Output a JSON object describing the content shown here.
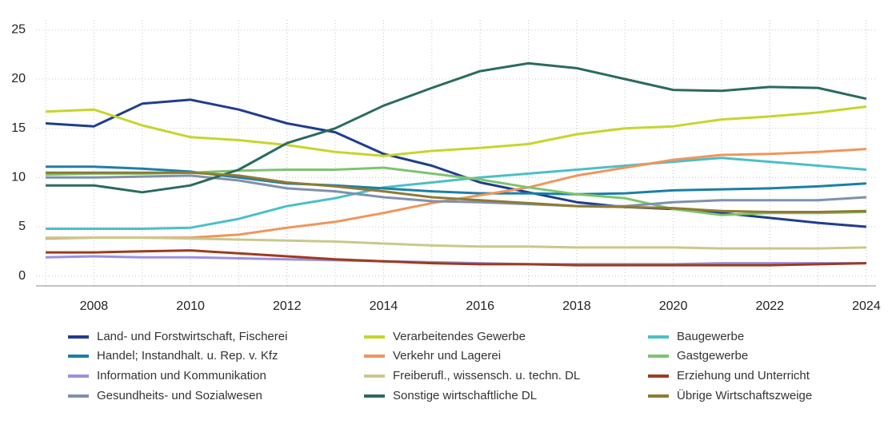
{
  "chart_data": {
    "type": "line",
    "x": [
      2007,
      2008,
      2009,
      2010,
      2011,
      2012,
      2013,
      2014,
      2015,
      2016,
      2017,
      2018,
      2019,
      2020,
      2021,
      2022,
      2023,
      2024
    ],
    "xlim": [
      2006.8,
      2024.2
    ],
    "xticks": [
      2008,
      2010,
      2012,
      2014,
      2016,
      2018,
      2020,
      2022,
      2024
    ],
    "ylim": [
      -1,
      26
    ],
    "yticks": [
      0,
      5,
      10,
      15,
      20,
      25
    ],
    "grid": true,
    "legend": "bottom",
    "series": [
      {
        "name": "Land- und Forstwirtschaft, Fischerei",
        "color": "#1f3d8c",
        "values": [
          15.5,
          15.2,
          17.5,
          17.9,
          16.9,
          15.5,
          14.6,
          12.4,
          11.2,
          9.5,
          8.5,
          7.5,
          7.0,
          6.8,
          6.4,
          5.9,
          5.4,
          5.0
        ]
      },
      {
        "name": "Verarbeitendes Gewerbe",
        "color": "#c5d62b",
        "values": [
          16.7,
          16.9,
          15.3,
          14.1,
          13.8,
          13.3,
          12.6,
          12.2,
          12.7,
          13.0,
          13.4,
          14.4,
          15.0,
          15.2,
          15.9,
          16.2,
          16.6,
          17.2
        ]
      },
      {
        "name": "Baugewerbe",
        "color": "#4bbfc7",
        "values": [
          4.8,
          4.8,
          4.8,
          4.9,
          5.8,
          7.1,
          7.9,
          9.0,
          9.5,
          10.0,
          10.4,
          10.8,
          11.2,
          11.6,
          12.0,
          11.6,
          11.2,
          10.8
        ]
      },
      {
        "name": "Handel; Instandhalt. u. Rep. v. Kfz",
        "color": "#1a7fa8",
        "values": [
          11.1,
          11.1,
          10.9,
          10.6,
          10.0,
          9.4,
          9.2,
          8.9,
          8.6,
          8.4,
          8.4,
          8.3,
          8.4,
          8.7,
          8.8,
          8.9,
          9.1,
          9.4
        ]
      },
      {
        "name": "Verkehr und Lagerei",
        "color": "#f0955a",
        "values": [
          3.8,
          3.9,
          3.9,
          3.9,
          4.2,
          4.9,
          5.5,
          6.4,
          7.4,
          8.2,
          9.0,
          10.2,
          11.0,
          11.8,
          12.3,
          12.4,
          12.6,
          12.9
        ]
      },
      {
        "name": "Gastgewerbe",
        "color": "#7cc46e",
        "values": [
          10.3,
          10.4,
          10.4,
          10.5,
          10.7,
          10.8,
          10.8,
          11.0,
          10.4,
          9.8,
          9.0,
          8.3,
          7.9,
          6.8,
          6.2,
          6.4,
          6.4,
          6.5
        ]
      },
      {
        "name": "Information und Kommunikation",
        "color": "#9a8fe0",
        "values": [
          1.9,
          2.0,
          1.9,
          1.9,
          1.8,
          1.7,
          1.6,
          1.5,
          1.4,
          1.3,
          1.2,
          1.2,
          1.2,
          1.2,
          1.3,
          1.3,
          1.3,
          1.3
        ]
      },
      {
        "name": "Freiberufl., wissensch. u. techn. DL",
        "color": "#c9c88e",
        "values": [
          3.9,
          3.9,
          3.9,
          3.8,
          3.7,
          3.6,
          3.5,
          3.3,
          3.1,
          3.0,
          3.0,
          2.9,
          2.9,
          2.9,
          2.8,
          2.8,
          2.8,
          2.9
        ]
      },
      {
        "name": "Erziehung und Unterricht",
        "color": "#9e3a1d",
        "values": [
          2.4,
          2.4,
          2.5,
          2.6,
          2.3,
          2.0,
          1.7,
          1.5,
          1.3,
          1.2,
          1.2,
          1.1,
          1.1,
          1.1,
          1.1,
          1.1,
          1.2,
          1.3
        ]
      },
      {
        "name": "Gesundheits- und Sozialwesen",
        "color": "#7f90b0",
        "values": [
          10.0,
          10.0,
          10.1,
          10.2,
          9.7,
          8.9,
          8.6,
          8.0,
          7.6,
          7.5,
          7.3,
          7.1,
          7.1,
          7.5,
          7.7,
          7.7,
          7.7,
          8.0
        ]
      },
      {
        "name": "Sonstige wirtschaftliche DL",
        "color": "#2a6b5e",
        "values": [
          9.2,
          9.2,
          8.5,
          9.2,
          10.8,
          13.5,
          15.0,
          17.3,
          19.1,
          20.8,
          21.6,
          21.1,
          20.0,
          18.9,
          18.8,
          19.2,
          19.1,
          18.0
        ]
      },
      {
        "name": "Übrige Wirtschaftszweige",
        "color": "#8f7a30",
        "values": [
          10.5,
          10.5,
          10.5,
          10.5,
          10.2,
          9.5,
          9.1,
          8.6,
          8.0,
          7.7,
          7.4,
          7.1,
          7.0,
          6.9,
          6.6,
          6.5,
          6.5,
          6.6
        ]
      }
    ]
  }
}
